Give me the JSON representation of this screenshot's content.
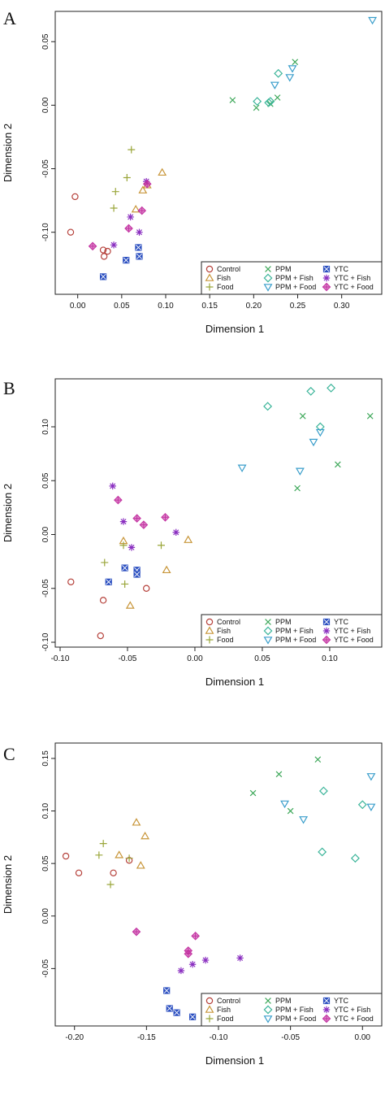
{
  "series_styles": {
    "Control": {
      "color": "#b5403a",
      "marker": "circle"
    },
    "Fish": {
      "color": "#c8963a",
      "marker": "triangle-up"
    },
    "Food": {
      "color": "#9aa63a",
      "marker": "plus"
    },
    "PPM": {
      "color": "#3ea85a",
      "marker": "x"
    },
    "PPM + Fish": {
      "color": "#3cb59a",
      "marker": "diamond"
    },
    "PPM + Food": {
      "color": "#3a9ecb",
      "marker": "triangle-down"
    },
    "YTC": {
      "color": "#2b4fc0",
      "marker": "square-cross"
    },
    "YTC + Fish": {
      "color": "#8a2fc0",
      "marker": "asterisk"
    },
    "YTC + Food": {
      "color": "#c22fa0",
      "marker": "diamond-plus"
    }
  },
  "legend_order": [
    "Control",
    "Fish",
    "Food",
    "PPM",
    "PPM + Fish",
    "PPM + Food",
    "YTC",
    "YTC + Fish",
    "YTC + Food"
  ],
  "chart_data": [
    {
      "type": "scatter",
      "panel": "A",
      "xlabel": "Dimension 1",
      "ylabel": "Dimension 2",
      "xlim": [
        -0.02,
        0.34
      ],
      "ylim": [
        -0.145,
        0.07
      ],
      "xticks": [
        "0.00",
        "0.05",
        "0.10",
        "0.15",
        "0.20",
        "0.25",
        "0.30"
      ],
      "yticks": [
        "-0.10",
        "-0.05",
        "0.00",
        "0.05"
      ],
      "legend": "bottom-right",
      "series": [
        {
          "name": "Control",
          "points": [
            [
              -0.008,
              -0.1
            ],
            [
              -0.003,
              -0.072
            ],
            [
              0.029,
              -0.114
            ],
            [
              0.03,
              -0.119
            ],
            [
              0.034,
              -0.115
            ]
          ]
        },
        {
          "name": "Fish",
          "points": [
            [
              0.066,
              -0.082
            ],
            [
              0.074,
              -0.067
            ],
            [
              0.079,
              -0.063
            ],
            [
              0.096,
              -0.053
            ]
          ]
        },
        {
          "name": "Food",
          "points": [
            [
              0.041,
              -0.081
            ],
            [
              0.043,
              -0.068
            ],
            [
              0.056,
              -0.057
            ],
            [
              0.061,
              -0.035
            ]
          ]
        },
        {
          "name": "PPM",
          "points": [
            [
              0.176,
              0.004
            ],
            [
              0.203,
              -0.002
            ],
            [
              0.219,
              0.001
            ],
            [
              0.227,
              0.006
            ],
            [
              0.247,
              0.034
            ]
          ]
        },
        {
          "name": "PPM + Fish",
          "points": [
            [
              0.204,
              0.003
            ],
            [
              0.217,
              0.002
            ],
            [
              0.219,
              0.003
            ],
            [
              0.228,
              0.025
            ]
          ]
        },
        {
          "name": "PPM + Food",
          "points": [
            [
              0.224,
              0.016
            ],
            [
              0.241,
              0.022
            ],
            [
              0.244,
              0.029
            ],
            [
              0.335,
              0.067
            ]
          ]
        },
        {
          "name": "YTC",
          "points": [
            [
              0.029,
              -0.135
            ],
            [
              0.055,
              -0.122
            ],
            [
              0.069,
              -0.112
            ],
            [
              0.07,
              -0.119
            ]
          ]
        },
        {
          "name": "YTC + Fish",
          "points": [
            [
              0.041,
              -0.11
            ],
            [
              0.06,
              -0.088
            ],
            [
              0.07,
              -0.1
            ],
            [
              0.078,
              -0.06
            ]
          ]
        },
        {
          "name": "YTC + Food",
          "points": [
            [
              0.017,
              -0.111
            ],
            [
              0.058,
              -0.097
            ],
            [
              0.073,
              -0.083
            ],
            [
              0.079,
              -0.062
            ]
          ]
        }
      ]
    },
    {
      "type": "scatter",
      "panel": "B",
      "xlabel": "Dimension 1",
      "ylabel": "Dimension 2",
      "xlim": [
        -0.1,
        0.135
      ],
      "ylim": [
        -0.1,
        0.14
      ],
      "xticks": [
        "-0.10",
        "-0.05",
        "0.00",
        "0.05",
        "0.10"
      ],
      "yticks": [
        "-0.10",
        "-0.05",
        "0.00",
        "0.05",
        "0.10"
      ],
      "legend": "bottom-right",
      "series": [
        {
          "name": "Control",
          "points": [
            [
              -0.092,
              -0.044
            ],
            [
              -0.068,
              -0.061
            ],
            [
              -0.07,
              -0.094
            ],
            [
              -0.036,
              -0.05
            ]
          ]
        },
        {
          "name": "Fish",
          "points": [
            [
              -0.053,
              -0.006
            ],
            [
              -0.048,
              -0.066
            ],
            [
              -0.021,
              -0.033
            ],
            [
              -0.005,
              -0.005
            ]
          ]
        },
        {
          "name": "Food",
          "points": [
            [
              -0.067,
              -0.026
            ],
            [
              -0.053,
              -0.01
            ],
            [
              -0.052,
              -0.046
            ],
            [
              -0.025,
              -0.01
            ]
          ]
        },
        {
          "name": "PPM",
          "points": [
            [
              0.076,
              0.043
            ],
            [
              0.08,
              0.11
            ],
            [
              0.106,
              0.065
            ],
            [
              0.13,
              0.11
            ]
          ]
        },
        {
          "name": "PPM + Fish",
          "points": [
            [
              0.054,
              0.119
            ],
            [
              0.086,
              0.133
            ],
            [
              0.093,
              0.1
            ],
            [
              0.101,
              0.136
            ]
          ]
        },
        {
          "name": "PPM + Food",
          "points": [
            [
              0.035,
              0.062
            ],
            [
              0.078,
              0.059
            ],
            [
              0.088,
              0.086
            ],
            [
              0.093,
              0.095
            ]
          ]
        },
        {
          "name": "YTC",
          "points": [
            [
              -0.064,
              -0.044
            ],
            [
              -0.052,
              -0.031
            ],
            [
              -0.043,
              -0.033
            ],
            [
              -0.043,
              -0.037
            ]
          ]
        },
        {
          "name": "YTC + Fish",
          "points": [
            [
              -0.061,
              0.045
            ],
            [
              -0.053,
              0.012
            ],
            [
              -0.047,
              -0.012
            ],
            [
              -0.014,
              0.002
            ]
          ]
        },
        {
          "name": "YTC + Food",
          "points": [
            [
              -0.057,
              0.032
            ],
            [
              -0.043,
              0.015
            ],
            [
              -0.038,
              0.009
            ],
            [
              -0.022,
              0.016
            ]
          ]
        }
      ]
    },
    {
      "type": "scatter",
      "panel": "C",
      "xlabel": "Dimension 1",
      "ylabel": "Dimension 2",
      "xlim": [
        -0.21,
        0.01
      ],
      "ylim": [
        -0.1,
        0.16
      ],
      "xticks": [
        "-0.20",
        "-0.15",
        "-0.10",
        "-0.05",
        "0.00"
      ],
      "yticks": [
        "-0.05",
        "0.00",
        "0.05",
        "0.10",
        "0.15"
      ],
      "legend": "bottom-right",
      "series": [
        {
          "name": "Control",
          "points": [
            [
              -0.206,
              0.057
            ],
            [
              -0.197,
              0.041
            ],
            [
              -0.173,
              0.041
            ],
            [
              -0.162,
              0.053
            ]
          ]
        },
        {
          "name": "Fish",
          "points": [
            [
              -0.169,
              0.058
            ],
            [
              -0.157,
              0.089
            ],
            [
              -0.154,
              0.048
            ],
            [
              -0.151,
              0.076
            ]
          ]
        },
        {
          "name": "Food",
          "points": [
            [
              -0.183,
              0.058
            ],
            [
              -0.18,
              0.069
            ],
            [
              -0.175,
              0.03
            ],
            [
              -0.162,
              0.055
            ]
          ]
        },
        {
          "name": "PPM",
          "points": [
            [
              -0.076,
              0.117
            ],
            [
              -0.058,
              0.135
            ],
            [
              -0.05,
              0.1
            ],
            [
              -0.031,
              0.149
            ]
          ]
        },
        {
          "name": "PPM + Fish",
          "points": [
            [
              -0.028,
              0.061
            ],
            [
              -0.027,
              0.119
            ],
            [
              -0.005,
              0.055
            ],
            [
              0.0,
              0.106
            ]
          ]
        },
        {
          "name": "PPM + Food",
          "points": [
            [
              -0.054,
              0.107
            ],
            [
              -0.041,
              0.092
            ],
            [
              0.006,
              0.104
            ],
            [
              0.006,
              0.133
            ]
          ]
        },
        {
          "name": "YTC",
          "points": [
            [
              -0.136,
              -0.071
            ],
            [
              -0.134,
              -0.088
            ],
            [
              -0.129,
              -0.092
            ],
            [
              -0.118,
              -0.096
            ]
          ]
        },
        {
          "name": "YTC + Fish",
          "points": [
            [
              -0.126,
              -0.052
            ],
            [
              -0.118,
              -0.046
            ],
            [
              -0.109,
              -0.042
            ],
            [
              -0.085,
              -0.04
            ]
          ]
        },
        {
          "name": "YTC + Food",
          "points": [
            [
              -0.157,
              -0.015
            ],
            [
              -0.121,
              -0.036
            ],
            [
              -0.121,
              -0.033
            ],
            [
              -0.116,
              -0.019
            ]
          ]
        }
      ]
    }
  ]
}
